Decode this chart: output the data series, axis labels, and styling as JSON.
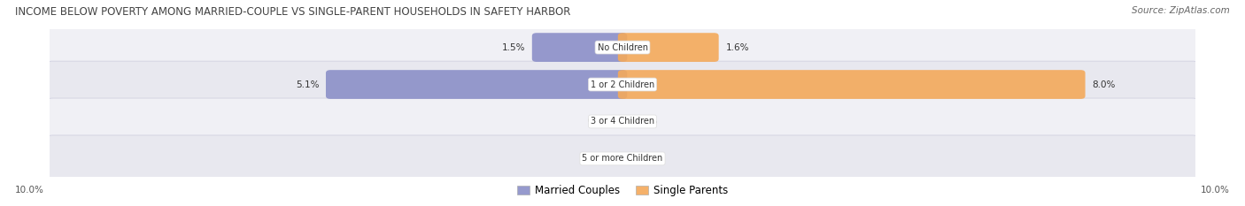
{
  "title": "INCOME BELOW POVERTY AMONG MARRIED-COUPLE VS SINGLE-PARENT HOUSEHOLDS IN SAFETY HARBOR",
  "source": "Source: ZipAtlas.com",
  "categories": [
    "No Children",
    "1 or 2 Children",
    "3 or 4 Children",
    "5 or more Children"
  ],
  "married_values": [
    1.5,
    5.1,
    0.0,
    0.0
  ],
  "single_values": [
    1.6,
    8.0,
    0.0,
    0.0
  ],
  "married_color": "#8B8FC8",
  "single_color": "#F4A95A",
  "max_value": 10.0,
  "title_fontsize": 8.5,
  "source_fontsize": 7.5,
  "label_fontsize": 7.5,
  "category_fontsize": 7.0,
  "legend_fontsize": 8.5,
  "background_color": "#ffffff",
  "row_bg_colors": [
    "#f0f0f5",
    "#e8e8ef"
  ],
  "row_border_color": "#ccccdd"
}
